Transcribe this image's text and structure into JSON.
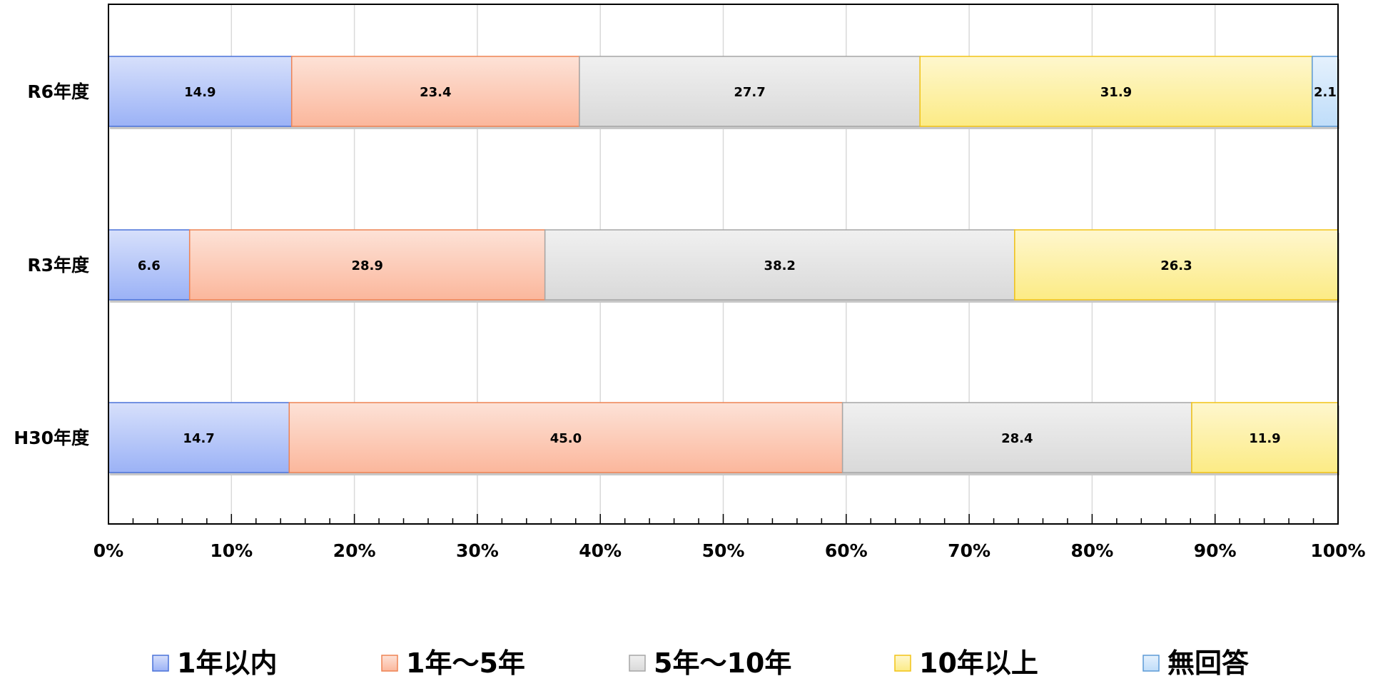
{
  "chart_data": {
    "type": "bar",
    "orientation": "horizontal",
    "stacked": "percent",
    "categories": [
      "R6年度",
      "R3年度",
      "H30年度"
    ],
    "series": [
      {
        "name": "1年以内",
        "values": [
          14.9,
          6.6,
          14.7
        ],
        "color": "#9BB2F6",
        "border": "#4A72D9"
      },
      {
        "name": "1年～5年",
        "values": [
          23.4,
          28.9,
          45.0
        ],
        "color": "#FBB79C",
        "border": "#EE8354"
      },
      {
        "name": "5年～10年",
        "values": [
          27.7,
          38.2,
          28.4
        ],
        "color": "#D9D9D9",
        "border": "#A6A6A6"
      },
      {
        "name": "10年以上",
        "values": [
          31.9,
          26.3,
          11.9
        ],
        "color": "#FCEB85",
        "border": "#F2C316"
      },
      {
        "name": "無回答",
        "values": [
          2.1,
          null,
          null
        ],
        "color": "#BFDDF9",
        "border": "#5C9AD6"
      }
    ],
    "x_ticks": [
      "0%",
      "10%",
      "20%",
      "30%",
      "40%",
      "50%",
      "60%",
      "70%",
      "80%",
      "90%",
      "100%"
    ],
    "xlim": [
      0,
      100
    ],
    "grid": "vertical",
    "legend": "bottom"
  }
}
